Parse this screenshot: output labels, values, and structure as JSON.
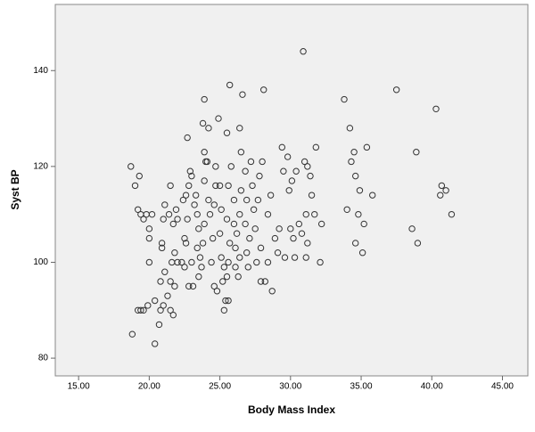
{
  "chart_data": {
    "type": "scatter",
    "x_label": "Body Mass Index",
    "y_label": "Syst BP",
    "xlim": [
      13.35,
      46.8
    ],
    "ylim": [
      76.3,
      153.8
    ],
    "xticks": [
      {
        "value": 15,
        "label": "15.00"
      },
      {
        "value": 20,
        "label": "20.00"
      },
      {
        "value": 25,
        "label": "25.00"
      },
      {
        "value": 30,
        "label": "30.00"
      },
      {
        "value": 35,
        "label": "35.00"
      },
      {
        "value": 40,
        "label": "40.00"
      },
      {
        "value": 45,
        "label": "45.00"
      }
    ],
    "yticks": [
      80,
      100,
      120,
      140
    ],
    "grid": false,
    "color": "#333333",
    "x": [
      18.8,
      20.4,
      18.7,
      19.0,
      19.3,
      19.2,
      19.4,
      19.6,
      19.8,
      20.2,
      20.0,
      20.0,
      20.0,
      19.2,
      19.4,
      19.6,
      19.9,
      20.4,
      20.7,
      20.8,
      21.0,
      21.3,
      21.5,
      21.7,
      20.8,
      21.1,
      21.5,
      21.8,
      21.6,
      21.8,
      22.0,
      22.3,
      20.9,
      20.9,
      21.0,
      21.1,
      21.4,
      21.5,
      21.7,
      21.9,
      22.0,
      22.4,
      22.6,
      22.7,
      22.8,
      22.9,
      23.0,
      22.7,
      22.5,
      22.6,
      22.5,
      22.8,
      23.1,
      23.0,
      23.2,
      23.3,
      23.4,
      23.5,
      23.4,
      23.6,
      23.5,
      23.7,
      23.8,
      23.9,
      23.9,
      24.0,
      23.9,
      23.8,
      23.9,
      24.2,
      24.1,
      24.2,
      24.3,
      24.5,
      24.4,
      24.6,
      24.8,
      24.6,
      24.7,
      24.7,
      24.9,
      25.0,
      25.1,
      25.0,
      25.1,
      25.2,
      25.3,
      25.4,
      25.3,
      25.6,
      25.5,
      25.6,
      25.7,
      25.5,
      25.6,
      25.8,
      25.7,
      25.5,
      26.0,
      26.0,
      26.2,
      26.1,
      26.1,
      26.3,
      26.4,
      26.4,
      26.5,
      26.5,
      26.4,
      26.6,
      26.8,
      26.9,
      26.8,
      26.9,
      27.0,
      27.1,
      27.2,
      27.3,
      27.4,
      27.5,
      27.6,
      27.9,
      27.9,
      27.7,
      27.8,
      28.0,
      28.1,
      28.2,
      28.4,
      28.4,
      28.6,
      28.7,
      28.9,
      29.1,
      29.2,
      29.4,
      29.5,
      29.6,
      29.8,
      29.9,
      30.0,
      30.1,
      30.2,
      30.4,
      30.3,
      30.6,
      30.8,
      30.9,
      31.0,
      31.2,
      31.1,
      31.2,
      31.1,
      31.4,
      31.5,
      31.7,
      31.8,
      32.1,
      32.2,
      33.8,
      34.0,
      34.2,
      34.3,
      34.5,
      34.6,
      34.6,
      34.8,
      34.9,
      35.1,
      35.2,
      35.4,
      35.8,
      37.5,
      38.6,
      38.9,
      39.0,
      40.3,
      40.6,
      40.7,
      41.0,
      41.4
    ],
    "values": [
      85,
      83,
      120,
      116,
      118,
      111,
      110,
      109,
      110,
      110,
      107,
      105,
      100,
      90,
      90,
      90,
      91,
      92,
      87,
      90,
      91,
      93,
      90,
      89,
      96,
      98,
      96,
      95,
      100,
      102,
      100,
      100,
      104,
      103,
      109,
      112,
      110,
      116,
      108,
      111,
      109,
      113,
      114,
      126,
      116,
      119,
      118,
      109,
      105,
      104,
      99,
      95,
      95,
      100,
      112,
      114,
      110,
      107,
      103,
      101,
      97,
      99,
      104,
      108,
      117,
      121,
      123,
      129,
      134,
      128,
      121,
      113,
      110,
      105,
      100,
      95,
      94,
      112,
      116,
      120,
      130,
      116,
      111,
      106,
      101,
      96,
      99,
      92,
      90,
      92,
      97,
      100,
      104,
      109,
      116,
      120,
      137,
      127,
      113,
      108,
      106,
      103,
      99,
      97,
      101,
      110,
      115,
      123,
      128,
      135,
      119,
      113,
      108,
      102,
      99,
      105,
      121,
      116,
      111,
      107,
      100,
      96,
      103,
      113,
      118,
      121,
      136,
      96,
      100,
      110,
      114,
      94,
      105,
      102,
      107,
      124,
      119,
      101,
      122,
      115,
      107,
      117,
      105,
      119,
      101,
      108,
      106,
      144,
      121,
      120,
      110,
      104,
      101,
      118,
      114,
      110,
      124,
      100,
      108,
      134,
      111,
      128,
      121,
      123,
      118,
      104,
      110,
      115,
      102,
      108,
      124,
      114,
      136,
      107,
      123,
      104,
      132,
      114,
      116,
      115,
      110
    ]
  }
}
